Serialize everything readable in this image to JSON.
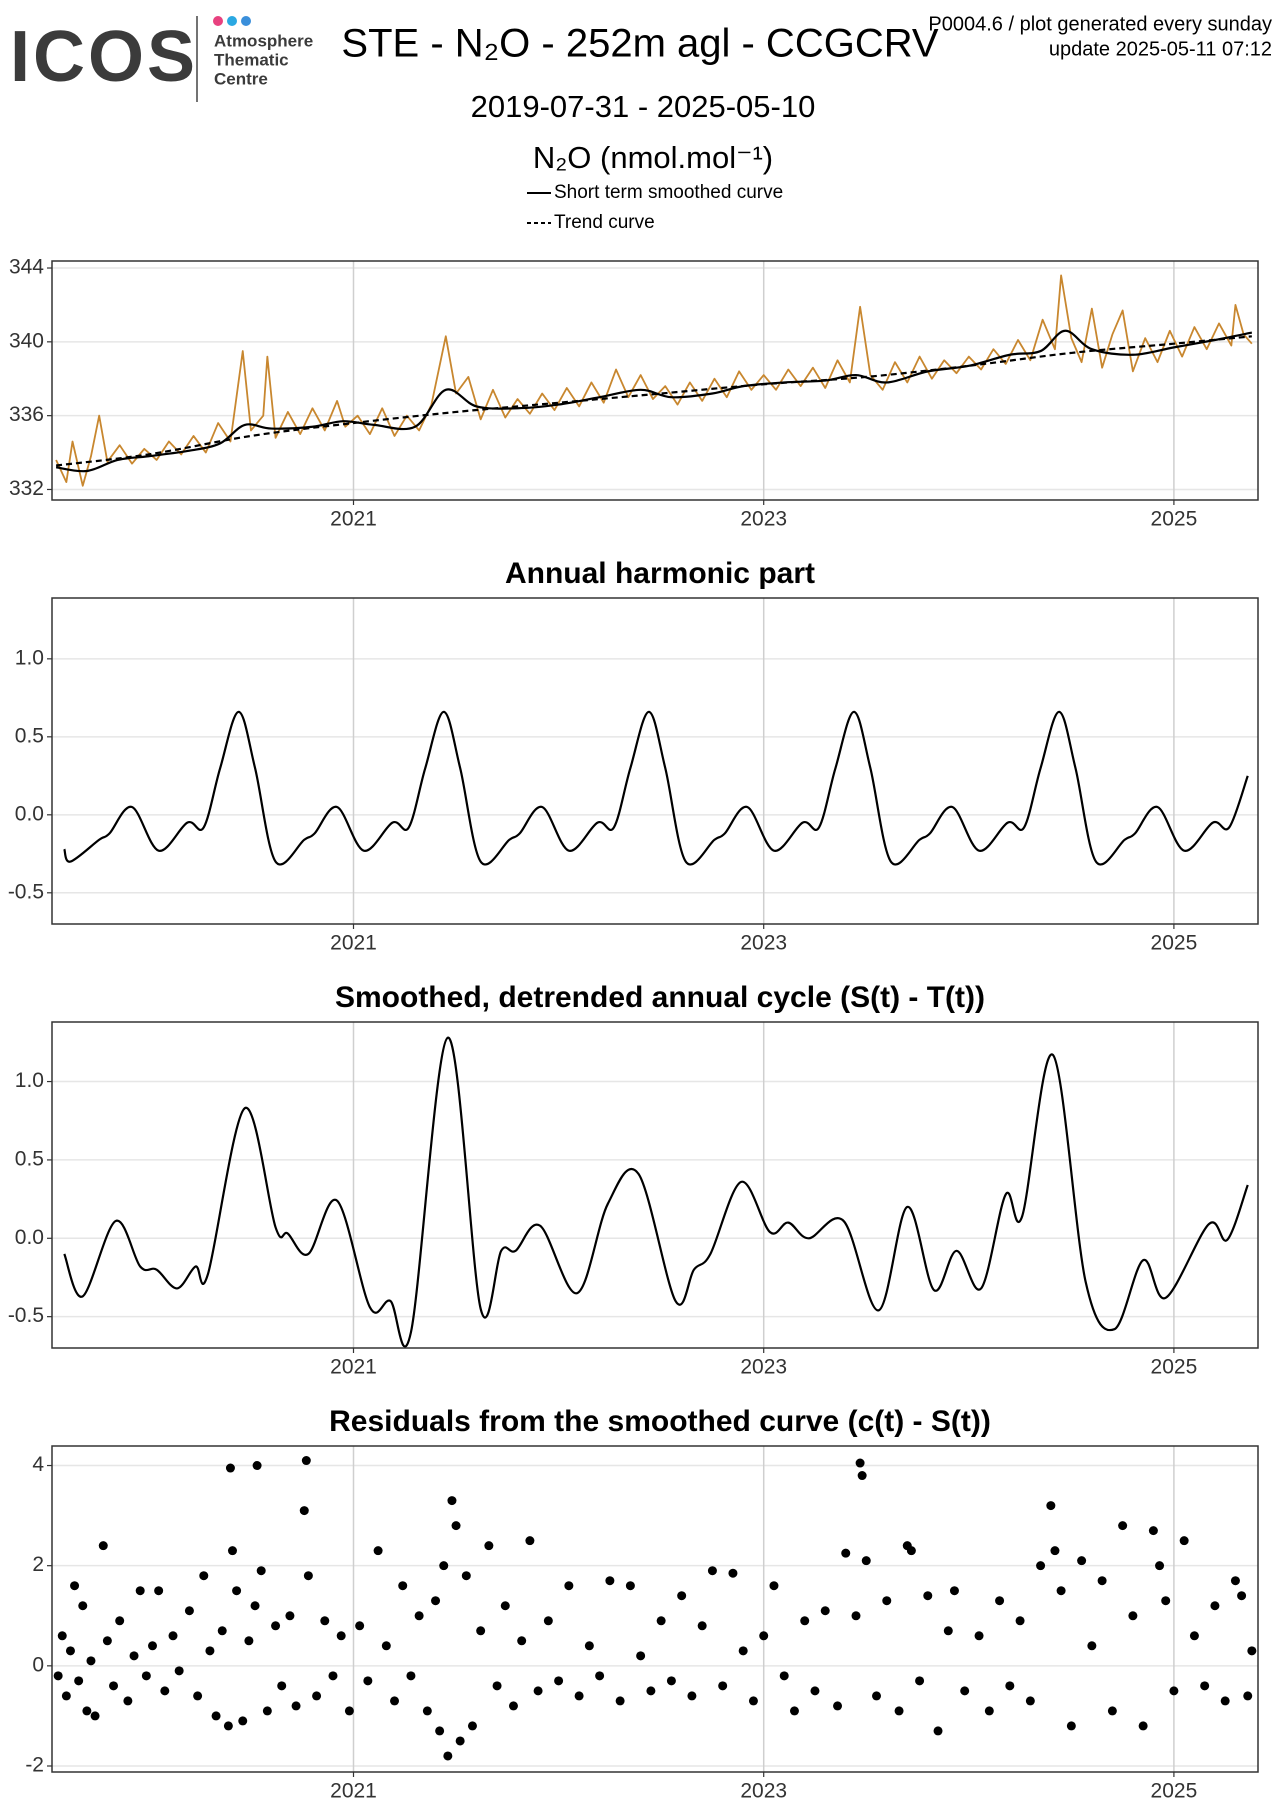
{
  "header": {
    "logo": "ICOS",
    "logo_sub": [
      "Atmosphere",
      "Thematic",
      "Centre"
    ],
    "note": "P0004.6 / plot generated every sunday",
    "update": "update  2025-05-11 07:12"
  },
  "chart_data": [
    {
      "type": "line",
      "title": "STE - N₂O - 252m agl - CCGCRV",
      "subtitle": "2019-07-31 - 2025-05-10",
      "ylabel": "N₂O (nmol.mol⁻¹)",
      "xlim": [
        2019.53,
        2025.41
      ],
      "xticks": [
        2021,
        2023,
        2025
      ],
      "ylim": [
        331.43,
        344.38
      ],
      "yticks": [
        332,
        336,
        340,
        344
      ],
      "grid": true,
      "series": [
        {
          "color": "#c8872f",
          "style": "solid",
          "smooth": false,
          "x": [
            2019.55,
            2019.6,
            2019.63,
            2019.68,
            2019.72,
            2019.76,
            2019.8,
            2019.86,
            2019.92,
            2019.98,
            2020.04,
            2020.1,
            2020.16,
            2020.22,
            2020.28,
            2020.34,
            2020.4,
            2020.46,
            2020.5,
            2020.56,
            2020.58,
            2020.62,
            2020.68,
            2020.74,
            2020.8,
            2020.86,
            2020.92,
            2020.96,
            2021.02,
            2021.08,
            2021.14,
            2021.2,
            2021.26,
            2021.32,
            2021.38,
            2021.45,
            2021.5,
            2021.56,
            2021.62,
            2021.68,
            2021.74,
            2021.8,
            2021.86,
            2021.92,
            2021.98,
            2022.04,
            2022.1,
            2022.16,
            2022.22,
            2022.28,
            2022.34,
            2022.4,
            2022.46,
            2022.52,
            2022.58,
            2022.64,
            2022.7,
            2022.76,
            2022.82,
            2022.88,
            2022.94,
            2023.0,
            2023.06,
            2023.12,
            2023.18,
            2023.24,
            2023.3,
            2023.36,
            2023.42,
            2023.47,
            2023.52,
            2023.58,
            2023.64,
            2023.7,
            2023.76,
            2023.82,
            2023.88,
            2023.94,
            2024.0,
            2024.06,
            2024.12,
            2024.18,
            2024.24,
            2024.3,
            2024.36,
            2024.42,
            2024.45,
            2024.5,
            2024.55,
            2024.6,
            2024.65,
            2024.7,
            2024.75,
            2024.8,
            2024.86,
            2024.92,
            2024.98,
            2025.04,
            2025.1,
            2025.16,
            2025.22,
            2025.28,
            2025.3,
            2025.34,
            2025.38
          ],
          "values": [
            333.6,
            332.4,
            334.6,
            332.2,
            333.8,
            336.0,
            333.5,
            334.4,
            333.4,
            334.2,
            333.6,
            334.6,
            333.9,
            334.9,
            334.0,
            335.6,
            334.6,
            339.5,
            335.2,
            336.0,
            339.2,
            334.8,
            336.2,
            335.0,
            336.4,
            335.2,
            336.8,
            335.4,
            336.0,
            335.0,
            336.4,
            334.9,
            336.0,
            335.2,
            336.6,
            340.3,
            337.2,
            338.1,
            335.8,
            337.4,
            335.9,
            336.9,
            336.1,
            337.2,
            336.3,
            337.5,
            336.5,
            337.8,
            336.7,
            338.5,
            337.0,
            338.2,
            336.9,
            337.6,
            336.6,
            337.8,
            336.8,
            338.0,
            337.0,
            338.4,
            337.4,
            338.2,
            337.4,
            338.5,
            337.6,
            338.6,
            337.5,
            339.0,
            337.8,
            341.9,
            338.2,
            337.4,
            338.9,
            337.8,
            339.2,
            338.0,
            339.0,
            338.3,
            339.2,
            338.5,
            339.6,
            338.8,
            340.1,
            339.0,
            341.2,
            339.6,
            343.6,
            340.2,
            338.9,
            341.8,
            338.6,
            340.4,
            341.7,
            338.4,
            340.2,
            338.9,
            340.6,
            339.2,
            340.8,
            339.6,
            341.0,
            339.8,
            342.0,
            340.4,
            339.9
          ]
        },
        {
          "name": "Short term smoothed curve",
          "color": "#000000",
          "style": "solid",
          "smooth": true,
          "x": [
            2019.55,
            2019.7,
            2019.85,
            2020.0,
            2020.2,
            2020.35,
            2020.47,
            2020.6,
            2020.8,
            2020.95,
            2021.1,
            2021.3,
            2021.45,
            2021.6,
            2021.8,
            2022.0,
            2022.2,
            2022.4,
            2022.55,
            2022.75,
            2022.9,
            2023.1,
            2023.3,
            2023.45,
            2023.6,
            2023.8,
            2024.0,
            2024.2,
            2024.35,
            2024.47,
            2024.6,
            2024.8,
            2025.0,
            2025.2,
            2025.38
          ],
          "values": [
            333.2,
            333.0,
            333.6,
            333.8,
            334.1,
            334.5,
            335.5,
            335.3,
            335.4,
            335.7,
            335.5,
            335.4,
            337.4,
            336.5,
            336.4,
            336.6,
            337.0,
            337.4,
            337.0,
            337.2,
            337.6,
            337.8,
            337.9,
            338.2,
            337.8,
            338.4,
            338.7,
            339.3,
            339.5,
            340.6,
            339.6,
            339.3,
            339.7,
            340.1,
            340.5
          ]
        },
        {
          "name": "Trend curve",
          "color": "#000000",
          "style": "dashed",
          "smooth": true,
          "x": [
            2019.55,
            2020.0,
            2020.5,
            2021.0,
            2021.5,
            2022.0,
            2022.5,
            2023.0,
            2023.5,
            2024.0,
            2024.5,
            2025.0,
            2025.38
          ],
          "values": [
            333.3,
            333.9,
            334.9,
            335.6,
            336.2,
            336.7,
            337.2,
            337.7,
            338.1,
            338.7,
            339.4,
            339.9,
            340.3
          ]
        }
      ]
    },
    {
      "type": "line",
      "title": "Annual harmonic part",
      "xlim": [
        2019.53,
        2025.41
      ],
      "xticks": [
        2021,
        2023,
        2025
      ],
      "ylim": [
        -0.7,
        1.39
      ],
      "yticks": [
        {
          "value": -0.5,
          "label": "-0.5"
        },
        {
          "value": 0,
          "label": "0.0"
        },
        0.5,
        {
          "value": 1,
          "label": "1.0"
        }
      ],
      "grid": true,
      "series": [
        {
          "color": "#000000",
          "style": "solid",
          "smooth": true,
          "x": [
            2019.59,
            2019.62,
            2019.76,
            2019.81,
            2019.92,
            2020.05,
            2020.19,
            2020.27,
            2020.35,
            2020.44,
            2020.52,
            2020.62,
            2020.76,
            2020.81,
            2020.92,
            2021.05,
            2021.19,
            2021.27,
            2021.35,
            2021.44,
            2021.52,
            2021.62,
            2021.76,
            2021.81,
            2021.92,
            2022.05,
            2022.19,
            2022.27,
            2022.35,
            2022.44,
            2022.52,
            2022.62,
            2022.76,
            2022.81,
            2022.92,
            2023.05,
            2023.19,
            2023.27,
            2023.35,
            2023.44,
            2023.52,
            2023.62,
            2023.76,
            2023.81,
            2023.92,
            2024.05,
            2024.19,
            2024.27,
            2024.35,
            2024.44,
            2024.52,
            2024.62,
            2024.76,
            2024.81,
            2024.92,
            2025.05,
            2025.19,
            2025.27,
            2025.36
          ],
          "values": [
            -0.22,
            -0.3,
            -0.16,
            -0.12,
            0.05,
            -0.23,
            -0.05,
            -0.08,
            0.3,
            0.66,
            0.3,
            -0.3,
            -0.16,
            -0.12,
            0.05,
            -0.23,
            -0.05,
            -0.08,
            0.3,
            0.66,
            0.3,
            -0.3,
            -0.16,
            -0.12,
            0.05,
            -0.23,
            -0.05,
            -0.08,
            0.3,
            0.66,
            0.3,
            -0.3,
            -0.16,
            -0.12,
            0.05,
            -0.23,
            -0.05,
            -0.08,
            0.3,
            0.66,
            0.3,
            -0.3,
            -0.16,
            -0.12,
            0.05,
            -0.23,
            -0.05,
            -0.08,
            0.3,
            0.66,
            0.3,
            -0.3,
            -0.16,
            -0.12,
            0.05,
            -0.23,
            -0.05,
            -0.08,
            0.25
          ]
        }
      ]
    },
    {
      "type": "line",
      "title": "Smoothed, detrended annual cycle (S(t) - T(t))",
      "xlim": [
        2019.53,
        2025.41
      ],
      "xticks": [
        2021,
        2023,
        2025
      ],
      "ylim": [
        -0.7,
        1.38
      ],
      "yticks": [
        {
          "value": -0.5,
          "label": "-0.5"
        },
        {
          "value": 0,
          "label": "0.0"
        },
        0.5,
        {
          "value": 1,
          "label": "1.0"
        }
      ],
      "grid": true,
      "series": [
        {
          "color": "#000000",
          "style": "solid",
          "smooth": true,
          "x": [
            2019.59,
            2019.68,
            2019.84,
            2019.96,
            2020.04,
            2020.14,
            2020.23,
            2020.29,
            2020.47,
            2020.62,
            2020.68,
            2020.78,
            2020.92,
            2021.08,
            2021.18,
            2021.28,
            2021.46,
            2021.62,
            2021.72,
            2021.79,
            2021.91,
            2022.09,
            2022.24,
            2022.39,
            2022.57,
            2022.66,
            2022.74,
            2022.89,
            2023.03,
            2023.12,
            2023.22,
            2023.39,
            2023.56,
            2023.7,
            2023.83,
            2023.94,
            2024.06,
            2024.18,
            2024.26,
            2024.41,
            2024.57,
            2024.71,
            2024.85,
            2024.96,
            2025.17,
            2025.26,
            2025.36
          ],
          "values": [
            -0.1,
            -0.37,
            0.11,
            -0.18,
            -0.2,
            -0.32,
            -0.18,
            -0.23,
            0.83,
            0.07,
            0.03,
            -0.1,
            0.24,
            -0.44,
            -0.4,
            -0.6,
            1.28,
            -0.45,
            -0.08,
            -0.08,
            0.08,
            -0.35,
            0.22,
            0.41,
            -0.4,
            -0.2,
            -0.1,
            0.36,
            0.04,
            0.1,
            0.0,
            0.11,
            -0.46,
            0.2,
            -0.33,
            -0.08,
            -0.32,
            0.28,
            0.14,
            1.17,
            -0.28,
            -0.58,
            -0.14,
            -0.38,
            0.09,
            -0.01,
            0.34
          ]
        }
      ]
    },
    {
      "type": "scatter",
      "title": "Residuals from the smoothed curve (c(t) - S(t))",
      "xlim": [
        2019.53,
        2025.41
      ],
      "xticks": [
        2021,
        2023,
        2025
      ],
      "ylim": [
        -2.12,
        4.39
      ],
      "yticks": [
        -2,
        0,
        2,
        4
      ],
      "grid": true,
      "color": "#000000",
      "x": [
        2019.56,
        2019.58,
        2019.6,
        2019.62,
        2019.64,
        2019.66,
        2019.68,
        2019.7,
        2019.72,
        2019.74,
        2019.78,
        2019.8,
        2019.83,
        2019.86,
        2019.9,
        2019.93,
        2019.96,
        2019.99,
        2020.02,
        2020.05,
        2020.08,
        2020.12,
        2020.15,
        2020.2,
        2020.24,
        2020.27,
        2020.3,
        2020.33,
        2020.36,
        2020.39,
        2020.4,
        2020.41,
        2020.43,
        2020.46,
        2020.49,
        2020.52,
        2020.53,
        2020.55,
        2020.58,
        2020.62,
        2020.65,
        2020.69,
        2020.72,
        2020.76,
        2020.77,
        2020.78,
        2020.82,
        2020.86,
        2020.9,
        2020.94,
        2020.98,
        2021.03,
        2021.07,
        2021.12,
        2021.16,
        2021.2,
        2021.24,
        2021.28,
        2021.32,
        2021.36,
        2021.4,
        2021.42,
        2021.44,
        2021.46,
        2021.48,
        2021.5,
        2021.52,
        2021.55,
        2021.58,
        2021.62,
        2021.66,
        2021.7,
        2021.74,
        2021.78,
        2021.82,
        2021.86,
        2021.9,
        2021.95,
        2022.0,
        2022.05,
        2022.1,
        2022.15,
        2022.2,
        2022.25,
        2022.3,
        2022.35,
        2022.4,
        2022.45,
        2022.5,
        2022.55,
        2022.6,
        2022.65,
        2022.7,
        2022.75,
        2022.8,
        2022.85,
        2022.9,
        2022.95,
        2023.0,
        2023.05,
        2023.1,
        2023.15,
        2023.2,
        2023.25,
        2023.3,
        2023.36,
        2023.4,
        2023.45,
        2023.47,
        2023.48,
        2023.5,
        2023.55,
        2023.6,
        2023.66,
        2023.7,
        2023.72,
        2023.76,
        2023.8,
        2023.85,
        2023.9,
        2023.93,
        2023.98,
        2024.05,
        2024.1,
        2024.15,
        2024.2,
        2024.25,
        2024.3,
        2024.35,
        2024.4,
        2024.42,
        2024.45,
        2024.5,
        2024.55,
        2024.6,
        2024.65,
        2024.7,
        2024.75,
        2024.8,
        2024.85,
        2024.9,
        2024.93,
        2024.96,
        2025.0,
        2025.05,
        2025.1,
        2025.15,
        2025.2,
        2025.25,
        2025.3,
        2025.33,
        2025.36,
        2025.38
      ],
      "values": [
        -0.2,
        0.6,
        -0.6,
        0.3,
        1.6,
        -0.3,
        1.2,
        -0.9,
        0.1,
        -1.0,
        2.4,
        0.5,
        -0.4,
        0.9,
        -0.7,
        0.2,
        1.5,
        -0.2,
        0.4,
        1.5,
        -0.5,
        0.6,
        -0.1,
        1.1,
        -0.6,
        1.8,
        0.3,
        -1.0,
        0.7,
        -1.2,
        3.95,
        2.3,
        1.5,
        -1.1,
        0.5,
        1.2,
        4.0,
        1.9,
        -0.9,
        0.8,
        -0.4,
        1.0,
        -0.8,
        3.1,
        4.1,
        1.8,
        -0.6,
        0.9,
        -0.2,
        0.6,
        -0.9,
        0.8,
        -0.3,
        2.3,
        0.4,
        -0.7,
        1.6,
        -0.2,
        1.0,
        -0.9,
        1.3,
        -1.3,
        2.0,
        -1.8,
        3.3,
        2.8,
        -1.5,
        1.8,
        -1.2,
        0.7,
        2.4,
        -0.4,
        1.2,
        -0.8,
        0.5,
        2.5,
        -0.5,
        0.9,
        -0.3,
        1.6,
        -0.6,
        0.4,
        -0.2,
        1.7,
        -0.7,
        1.6,
        0.2,
        -0.5,
        0.9,
        -0.3,
        1.4,
        -0.6,
        0.8,
        1.9,
        -0.4,
        1.85,
        0.3,
        -0.7,
        0.6,
        1.6,
        -0.2,
        -0.9,
        0.9,
        -0.5,
        1.1,
        -0.8,
        2.25,
        1.0,
        4.05,
        3.8,
        2.1,
        -0.6,
        1.3,
        -0.9,
        2.4,
        2.3,
        -0.3,
        1.4,
        -1.3,
        0.7,
        1.5,
        -0.5,
        0.6,
        -0.9,
        1.3,
        -0.4,
        0.9,
        -0.7,
        2.0,
        3.2,
        2.3,
        1.5,
        -1.2,
        2.1,
        0.4,
        1.7,
        -0.9,
        2.8,
        1.0,
        -1.2,
        2.7,
        2.0,
        1.3,
        -0.5,
        2.5,
        0.6,
        -0.4,
        1.2,
        -0.7,
        1.7,
        1.4,
        -0.6,
        0.3
      ]
    }
  ]
}
